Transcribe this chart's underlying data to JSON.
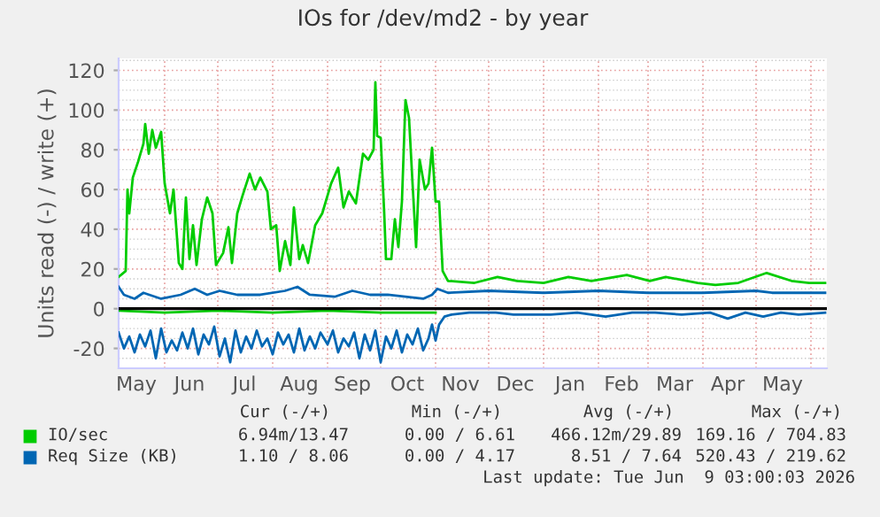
{
  "chart_data": {
    "type": "line",
    "title": "IOs for /dev/md2 - by year",
    "ylabel": "Units read (-) / write (+)",
    "xlim": [
      "2025-05-06",
      "2026-06-10"
    ],
    "ylim": [
      -30,
      126
    ],
    "xticks": [
      {
        "value": "2025-05-16",
        "label": "May"
      },
      {
        "value": "2025-06-15",
        "label": "Jun"
      },
      {
        "value": "2025-07-16",
        "label": "Jul"
      },
      {
        "value": "2025-08-16",
        "label": "Aug"
      },
      {
        "value": "2025-09-15",
        "label": "Sep"
      },
      {
        "value": "2025-10-16",
        "label": "Oct"
      },
      {
        "value": "2025-11-15",
        "label": "Nov"
      },
      {
        "value": "2025-12-16",
        "label": "Dec"
      },
      {
        "value": "2026-01-16",
        "label": "Jan"
      },
      {
        "value": "2026-02-14",
        "label": "Feb"
      },
      {
        "value": "2026-03-16",
        "label": "Mar"
      },
      {
        "value": "2026-04-15",
        "label": "Apr"
      },
      {
        "value": "2026-05-16",
        "label": "May"
      },
      {
        "value": "2025-06-01",
        "label": null
      },
      {
        "value": "2025-07-01",
        "label": null
      },
      {
        "value": "2025-08-01",
        "label": null
      },
      {
        "value": "2025-09-01",
        "label": null
      },
      {
        "value": "2025-10-01",
        "label": null
      },
      {
        "value": "2025-11-01",
        "label": null
      },
      {
        "value": "2025-12-01",
        "label": null
      },
      {
        "value": "2026-01-01",
        "label": null
      },
      {
        "value": "2026-02-01",
        "label": null
      },
      {
        "value": "2026-03-01",
        "label": null
      },
      {
        "value": "2026-04-01",
        "label": null
      },
      {
        "value": "2026-05-01",
        "label": null
      },
      {
        "value": "2026-06-01",
        "label": null
      }
    ],
    "yticks": [
      -20,
      0,
      20,
      40,
      60,
      80,
      100,
      120,
      {
        "value": -25,
        "label": null
      },
      {
        "value": -15,
        "label": null
      },
      {
        "value": -10,
        "label": null
      },
      {
        "value": -5,
        "label": null
      },
      {
        "value": 5,
        "label": null
      },
      {
        "value": 10,
        "label": null
      },
      {
        "value": 15,
        "label": null
      },
      {
        "value": 25,
        "label": null
      },
      {
        "value": 30,
        "label": null
      },
      {
        "value": 35,
        "label": null
      },
      {
        "value": 45,
        "label": null
      },
      {
        "value": 50,
        "label": null
      },
      {
        "value": 55,
        "label": null
      },
      {
        "value": 65,
        "label": null
      },
      {
        "value": 70,
        "label": null
      },
      {
        "value": 75,
        "label": null
      },
      {
        "value": 85,
        "label": null
      },
      {
        "value": 90,
        "label": null
      },
      {
        "value": 95,
        "label": null
      },
      {
        "value": 105,
        "label": null
      },
      {
        "value": 110,
        "label": null
      },
      {
        "value": 115,
        "label": null
      },
      {
        "value": 125,
        "label": null
      }
    ],
    "grid": true,
    "legend": "bottom",
    "marker": "none",
    "line_style": "solid",
    "ref_lines": [
      {
        "axis": "y",
        "value": 0,
        "color": "#000000"
      }
    ],
    "series": [
      {
        "name": "IO/sec",
        "color": "#00cc00",
        "x": [
          "2025-05-06",
          "2025-05-10",
          "2025-05-11",
          "2025-05-12",
          "2025-05-14",
          "2025-05-17",
          "2025-05-20",
          "2025-05-21",
          "2025-05-23",
          "2025-05-25",
          "2025-05-27",
          "2025-05-30",
          "2025-06-01",
          "2025-06-04",
          "2025-06-06",
          "2025-06-09",
          "2025-06-11",
          "2025-06-13",
          "2025-06-15",
          "2025-06-17",
          "2025-06-19",
          "2025-06-22",
          "2025-06-25",
          "2025-06-28",
          "2025-06-30",
          "2025-07-04",
          "2025-07-07",
          "2025-07-09",
          "2025-07-12",
          "2025-07-15",
          "2025-07-19",
          "2025-07-22",
          "2025-07-25",
          "2025-07-29",
          "2025-07-31",
          "2025-08-03",
          "2025-08-05",
          "2025-08-08",
          "2025-08-11",
          "2025-08-13",
          "2025-08-16",
          "2025-08-18",
          "2025-08-21",
          "2025-08-25",
          "2025-08-29",
          "2025-09-03",
          "2025-09-07",
          "2025-09-10",
          "2025-09-13",
          "2025-09-17",
          "2025-09-21",
          "2025-09-24",
          "2025-09-27",
          "2025-09-28",
          "2025-09-29",
          "2025-10-01",
          "2025-10-03",
          "2025-10-04",
          "2025-10-07",
          "2025-10-09",
          "2025-10-11",
          "2025-10-13",
          "2025-10-15",
          "2025-10-17",
          "2025-10-19",
          "2025-10-21",
          "2025-10-23",
          "2025-10-26",
          "2025-10-28",
          "2025-10-30",
          "2025-11-01",
          "2025-11-03",
          "2025-11-05",
          "2025-11-08",
          "2025-11-23",
          "2025-12-06",
          "2025-12-17",
          "2026-01-01",
          "2026-01-15",
          "2026-01-28",
          "2026-02-17",
          "2026-03-02",
          "2026-03-11",
          "2026-03-29",
          "2026-04-08",
          "2026-04-21",
          "2026-05-07",
          "2026-05-21",
          "2026-05-31",
          "2026-06-09"
        ],
        "values": [
          16,
          19,
          60,
          48,
          66,
          74,
          83,
          93,
          78,
          90,
          81,
          89,
          63,
          48,
          60,
          23,
          20,
          56,
          25,
          42,
          22,
          45,
          56,
          48,
          22,
          28,
          41,
          23,
          48,
          57,
          68,
          60,
          66,
          59,
          40,
          42,
          19,
          34,
          22,
          51,
          25,
          32,
          23,
          42,
          48,
          63,
          71,
          51,
          59,
          53,
          78,
          75,
          80,
          114,
          87,
          86,
          48,
          25,
          25,
          45,
          31,
          54,
          105,
          96,
          63,
          31,
          75,
          60,
          63,
          81,
          54,
          54,
          19,
          14,
          13,
          16,
          14,
          13,
          16,
          14,
          17,
          14,
          16,
          13,
          12,
          13,
          18,
          14,
          13,
          13
        ]
      },
      {
        "color": "#00cc00",
        "x": [
          "2025-05-06",
          "2025-06-01",
          "2025-07-01",
          "2025-08-01",
          "2025-09-01",
          "2025-10-01",
          "2025-11-01"
        ],
        "values": [
          -1,
          -2,
          -1,
          -2,
          -1,
          -2,
          -2
        ]
      },
      {
        "name": "Req Size (KB)",
        "color": "#0066b3",
        "x": [
          "2025-05-06",
          "2025-05-09",
          "2025-05-15",
          "2025-05-20",
          "2025-05-30",
          "2025-06-10",
          "2025-06-18",
          "2025-06-25",
          "2025-07-02",
          "2025-07-12",
          "2025-07-25",
          "2025-08-08",
          "2025-08-15",
          "2025-08-22",
          "2025-09-05",
          "2025-09-15",
          "2025-09-25",
          "2025-10-05",
          "2025-10-15",
          "2025-10-25",
          "2025-10-30",
          "2025-11-02",
          "2025-11-08",
          "2025-12-01",
          "2026-01-01",
          "2026-02-01",
          "2026-03-01",
          "2026-04-01",
          "2026-05-01",
          "2026-05-10",
          "2026-06-09"
        ],
        "values": [
          11,
          7,
          5,
          8,
          5,
          7,
          10,
          7,
          9,
          7,
          7,
          9,
          11,
          7,
          6,
          9,
          7,
          7,
          6,
          5,
          7,
          10,
          8,
          9,
          8,
          9,
          8,
          8,
          9,
          8,
          8
        ]
      },
      {
        "color": "#0066b3",
        "x": [
          "2025-05-06",
          "2025-05-09",
          "2025-05-12",
          "2025-05-15",
          "2025-05-18",
          "2025-05-21",
          "2025-05-24",
          "2025-05-27",
          "2025-05-30",
          "2025-06-02",
          "2025-06-05",
          "2025-06-08",
          "2025-06-11",
          "2025-06-14",
          "2025-06-17",
          "2025-06-20",
          "2025-06-23",
          "2025-06-26",
          "2025-06-29",
          "2025-07-02",
          "2025-07-05",
          "2025-07-08",
          "2025-07-11",
          "2025-07-14",
          "2025-07-17",
          "2025-07-20",
          "2025-07-23",
          "2025-07-26",
          "2025-07-29",
          "2025-08-01",
          "2025-08-04",
          "2025-08-07",
          "2025-08-10",
          "2025-08-13",
          "2025-08-16",
          "2025-08-19",
          "2025-08-22",
          "2025-08-25",
          "2025-08-28",
          "2025-09-01",
          "2025-09-04",
          "2025-09-07",
          "2025-09-10",
          "2025-09-13",
          "2025-09-16",
          "2025-09-19",
          "2025-09-22",
          "2025-09-25",
          "2025-09-28",
          "2025-10-01",
          "2025-10-04",
          "2025-10-07",
          "2025-10-10",
          "2025-10-13",
          "2025-10-16",
          "2025-10-19",
          "2025-10-22",
          "2025-10-25",
          "2025-10-28",
          "2025-10-30",
          "2025-11-01",
          "2025-11-03",
          "2025-11-06",
          "2025-11-10",
          "2025-11-20",
          "2025-12-05",
          "2025-12-15",
          "2025-12-25",
          "2026-01-05",
          "2026-01-20",
          "2026-02-05",
          "2026-02-20",
          "2026-03-05",
          "2026-03-20",
          "2026-04-05",
          "2026-04-15",
          "2026-04-25",
          "2026-05-05",
          "2026-05-15",
          "2026-05-25",
          "2026-06-09"
        ],
        "values": [
          -12,
          -20,
          -14,
          -22,
          -13,
          -19,
          -11,
          -25,
          -10,
          -22,
          -16,
          -21,
          -12,
          -20,
          -10,
          -23,
          -13,
          -18,
          -9,
          -24,
          -15,
          -27,
          -11,
          -22,
          -14,
          -20,
          -11,
          -19,
          -15,
          -23,
          -12,
          -18,
          -13,
          -22,
          -10,
          -21,
          -14,
          -20,
          -12,
          -18,
          -11,
          -22,
          -15,
          -19,
          -12,
          -25,
          -13,
          -21,
          -11,
          -27,
          -14,
          -20,
          -11,
          -22,
          -13,
          -18,
          -10,
          -21,
          -15,
          -8,
          -16,
          -8,
          -4,
          -3,
          -2,
          -2,
          -3,
          -3,
          -3,
          -2,
          -4,
          -2,
          -2,
          -3,
          -2,
          -5,
          -2,
          -4,
          -2,
          -3,
          -2
        ]
      }
    ],
    "annotations": [
      "Cur (-/+)",
      "Min (-/+)",
      "Avg (-/+)",
      "Max (-/+)",
      "6.94m/13.47",
      "0.00 / 6.61",
      "466.12m/29.89",
      "169.16 / 704.83",
      "1.10 / 8.06",
      "0.00 / 4.17",
      "8.51 / 7.64",
      "520.43 / 219.62",
      "Last update: Tue Jun  9 03:00:03 2026"
    ]
  }
}
